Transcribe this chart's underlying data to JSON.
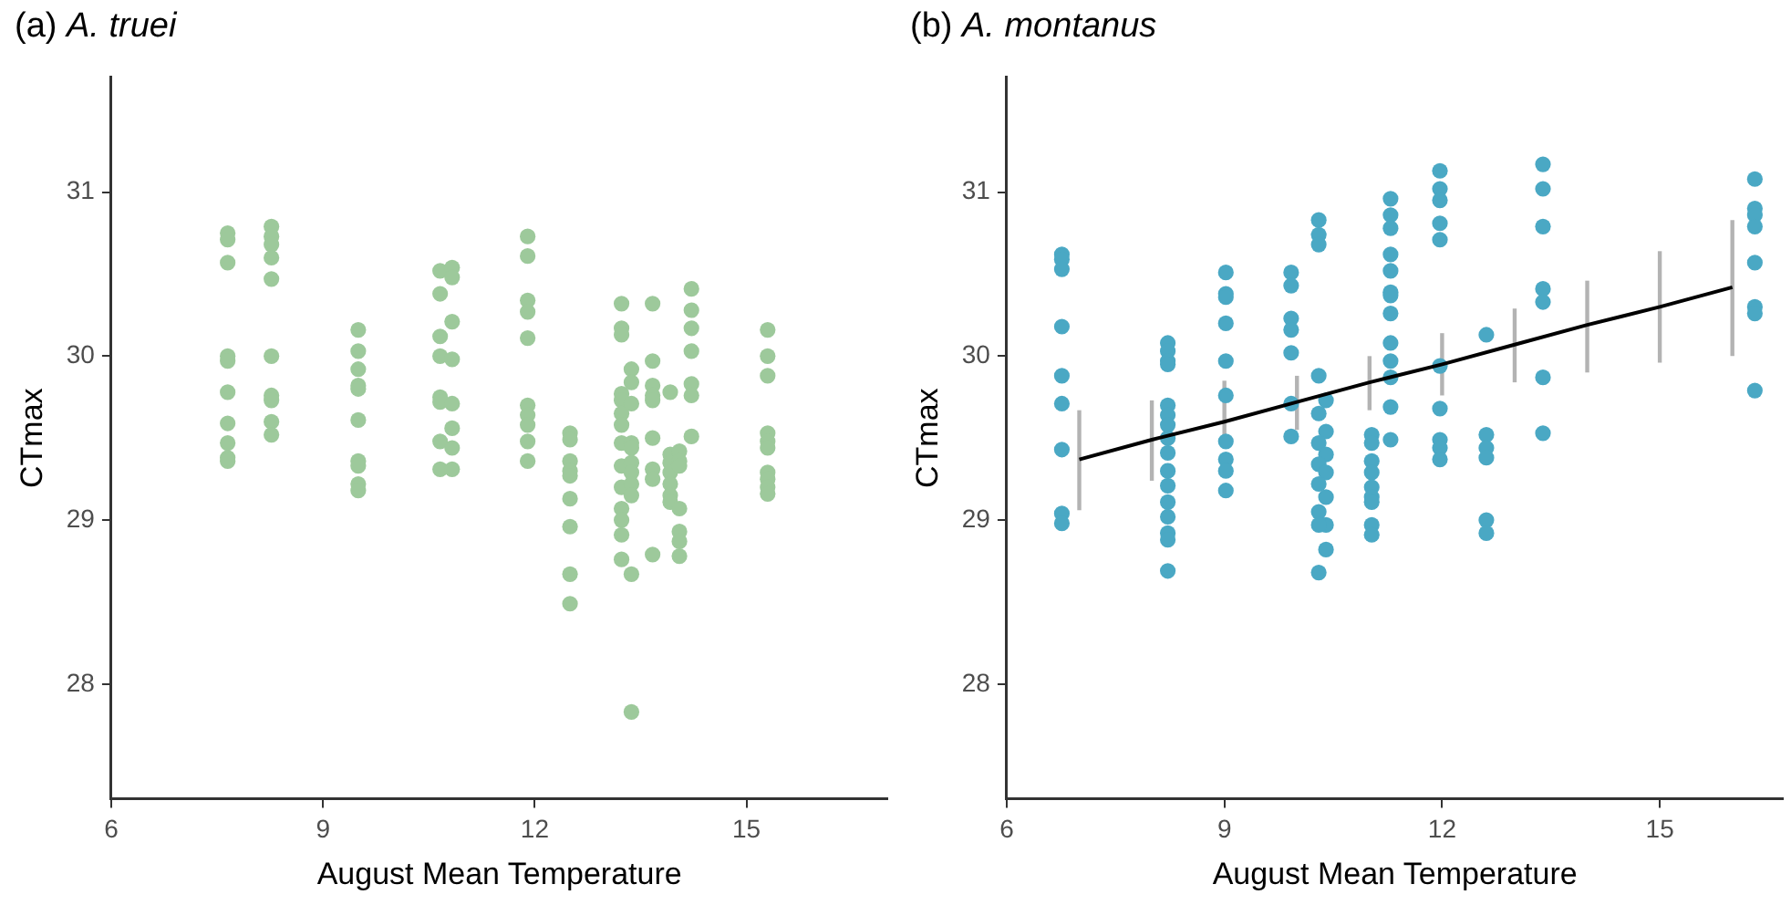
{
  "chart_data": [
    {
      "type": "scatter",
      "title": "(a) A. truei",
      "xlabel": "August Mean Temperature",
      "ylabel": "CTmax",
      "xlim": [
        6,
        17
      ],
      "xticks": [
        6,
        9,
        12,
        15
      ],
      "ylim": [
        27.3,
        31.7
      ],
      "yticks": [
        28,
        29,
        30,
        31
      ],
      "grid": false,
      "legend": false,
      "marker": "circle",
      "series": [
        {
          "color": "#9dc99b",
          "x": [
            7.65,
            7.65,
            7.65,
            7.65,
            7.65,
            7.65,
            7.65,
            7.65,
            7.65,
            7.65,
            8.27,
            8.27,
            8.27,
            8.27,
            8.27,
            8.27,
            8.27,
            8.27,
            8.27,
            8.27,
            9.5,
            9.5,
            9.5,
            9.5,
            9.5,
            9.5,
            9.5,
            9.5,
            9.5,
            9.5,
            10.66,
            10.66,
            10.66,
            10.66,
            10.66,
            10.66,
            10.66,
            10.66,
            10.83,
            10.83,
            10.83,
            10.83,
            10.83,
            10.83,
            10.83,
            10.83,
            11.9,
            11.9,
            11.9,
            11.9,
            11.9,
            11.9,
            11.9,
            11.9,
            11.9,
            11.9,
            12.5,
            12.5,
            12.5,
            12.5,
            12.5,
            12.5,
            12.5,
            12.5,
            12.5,
            13.23,
            13.23,
            13.23,
            13.23,
            13.23,
            13.23,
            13.23,
            13.23,
            13.23,
            13.23,
            13.23,
            13.23,
            13.23,
            13.23,
            13.37,
            13.37,
            13.37,
            13.37,
            13.37,
            13.37,
            13.37,
            13.37,
            13.37,
            13.37,
            13.37,
            13.67,
            13.67,
            13.67,
            13.67,
            13.67,
            13.67,
            13.67,
            13.67,
            13.67,
            13.92,
            13.92,
            13.92,
            13.92,
            13.92,
            13.92,
            13.92,
            14.05,
            14.05,
            14.05,
            14.05,
            14.05,
            14.05,
            14.05,
            14.22,
            14.22,
            14.22,
            14.22,
            14.22,
            14.22,
            14.22,
            15.3,
            15.3,
            15.3,
            15.3,
            15.3,
            15.3,
            15.3,
            15.3,
            15.3,
            15.3
          ],
          "values": [
            30.75,
            30.71,
            30.57,
            30.0,
            29.97,
            29.78,
            29.59,
            29.47,
            29.38,
            29.36,
            30.79,
            30.73,
            30.68,
            30.6,
            30.47,
            30.0,
            29.76,
            29.73,
            29.6,
            29.52,
            30.16,
            30.03,
            29.92,
            29.82,
            29.8,
            29.61,
            29.36,
            29.33,
            29.22,
            29.18,
            30.52,
            30.38,
            30.12,
            30.0,
            29.75,
            29.72,
            29.48,
            29.31,
            30.54,
            30.48,
            30.21,
            29.98,
            29.71,
            29.56,
            29.44,
            29.31,
            30.73,
            30.61,
            30.34,
            30.27,
            30.11,
            29.7,
            29.64,
            29.58,
            29.48,
            29.36,
            29.53,
            29.49,
            29.36,
            29.3,
            29.27,
            29.13,
            28.96,
            28.67,
            28.49,
            30.32,
            30.17,
            30.13,
            29.77,
            29.73,
            29.65,
            29.58,
            29.47,
            29.33,
            29.2,
            29.07,
            29.0,
            28.91,
            28.76,
            29.92,
            29.84,
            29.71,
            29.47,
            29.44,
            29.35,
            29.29,
            29.22,
            29.15,
            28.67,
            27.83,
            30.32,
            29.97,
            29.82,
            29.76,
            29.73,
            29.5,
            29.31,
            29.25,
            28.79,
            29.78,
            29.4,
            29.35,
            29.29,
            29.22,
            29.15,
            29.11,
            29.42,
            29.36,
            29.33,
            29.07,
            28.93,
            28.87,
            28.78,
            30.41,
            30.28,
            30.17,
            30.03,
            29.83,
            29.76,
            29.51,
            30.16,
            30.0,
            29.88,
            29.53,
            29.48,
            29.44,
            29.29,
            29.25,
            29.2,
            29.16
          ]
        }
      ]
    },
    {
      "type": "scatter",
      "title": "(b) A. montanus",
      "xlabel": "August Mean Temperature",
      "ylabel": "CTmax",
      "xlim": [
        6,
        16.7
      ],
      "xticks": [
        6,
        9,
        12,
        15
      ],
      "ylim": [
        27.3,
        31.7
      ],
      "yticks": [
        28,
        29,
        30,
        31
      ],
      "grid": false,
      "legend": false,
      "marker": "circle",
      "series": [
        {
          "color": "#4aa8c4",
          "x": [
            6.76,
            6.76,
            6.76,
            6.76,
            6.76,
            6.76,
            6.76,
            6.76,
            6.76,
            8.22,
            8.22,
            8.22,
            8.22,
            8.22,
            8.22,
            8.22,
            8.22,
            8.22,
            8.22,
            8.22,
            8.22,
            8.22,
            8.22,
            8.22,
            8.22,
            9.02,
            9.02,
            9.02,
            9.02,
            9.02,
            9.02,
            9.02,
            9.02,
            9.02,
            9.02,
            9.92,
            9.92,
            9.92,
            9.92,
            9.92,
            9.92,
            9.92,
            10.3,
            10.3,
            10.3,
            10.3,
            10.4,
            10.3,
            10.4,
            10.3,
            10.4,
            10.3,
            10.4,
            10.3,
            10.4,
            10.3,
            10.4,
            10.3,
            10.4,
            10.3,
            11.29,
            11.29,
            11.29,
            11.29,
            11.29,
            11.29,
            11.29,
            11.29,
            11.29,
            11.29,
            11.29,
            11.29,
            11.29,
            11.03,
            11.03,
            11.03,
            11.03,
            11.03,
            11.03,
            11.03,
            11.03,
            11.03,
            11.97,
            11.97,
            11.97,
            11.97,
            11.97,
            11.97,
            11.97,
            11.97,
            11.97,
            11.97,
            12.61,
            12.61,
            12.61,
            12.61,
            12.61,
            12.61,
            13.39,
            13.39,
            13.39,
            13.39,
            13.39,
            13.39,
            13.39,
            16.31,
            16.31,
            16.31,
            16.31,
            16.31,
            16.31,
            16.31,
            16.31
          ],
          "values": [
            30.62,
            30.59,
            30.53,
            30.18,
            29.88,
            29.71,
            29.43,
            29.04,
            28.98,
            30.08,
            30.03,
            29.97,
            29.95,
            29.7,
            29.64,
            29.58,
            29.5,
            29.41,
            29.3,
            29.21,
            29.11,
            29.02,
            28.92,
            28.88,
            28.69,
            30.51,
            30.38,
            30.36,
            30.2,
            29.97,
            29.76,
            29.48,
            29.37,
            29.3,
            29.18,
            30.51,
            30.43,
            30.23,
            30.16,
            30.02,
            29.71,
            29.51,
            30.83,
            30.74,
            30.68,
            29.88,
            29.73,
            29.65,
            29.54,
            29.47,
            29.4,
            29.34,
            29.29,
            29.22,
            29.14,
            29.05,
            28.97,
            28.97,
            28.82,
            28.68,
            30.96,
            30.86,
            30.78,
            30.62,
            30.52,
            30.39,
            30.37,
            30.26,
            30.08,
            29.97,
            29.87,
            29.69,
            29.49,
            29.52,
            29.47,
            29.36,
            29.29,
            29.2,
            29.14,
            29.11,
            28.97,
            28.91,
            31.13,
            31.02,
            30.95,
            30.81,
            30.71,
            29.94,
            29.68,
            29.49,
            29.44,
            29.37,
            30.13,
            29.52,
            29.44,
            29.38,
            29.0,
            28.92,
            31.17,
            31.02,
            30.79,
            30.41,
            30.33,
            29.87,
            29.53,
            31.08,
            30.9,
            30.86,
            30.79,
            30.57,
            30.3,
            30.26,
            29.79
          ]
        },
        {
          "type": "line",
          "color": "#000000",
          "marker": "none",
          "x": [
            7,
            8,
            9,
            10,
            11,
            12,
            13,
            14,
            15,
            16
          ],
          "values": [
            29.37,
            29.49,
            29.6,
            29.72,
            29.84,
            29.95,
            30.07,
            30.19,
            30.3,
            30.42
          ],
          "errors": [
            [
              29.06,
              29.67
            ],
            [
              29.24,
              29.73
            ],
            [
              29.47,
              29.85
            ],
            [
              29.55,
              29.88
            ],
            [
              29.67,
              30.0
            ],
            [
              29.76,
              30.14
            ],
            [
              29.84,
              30.29
            ],
            [
              29.9,
              30.46
            ],
            [
              29.96,
              30.64
            ],
            [
              30.0,
              30.83
            ]
          ]
        }
      ]
    }
  ]
}
